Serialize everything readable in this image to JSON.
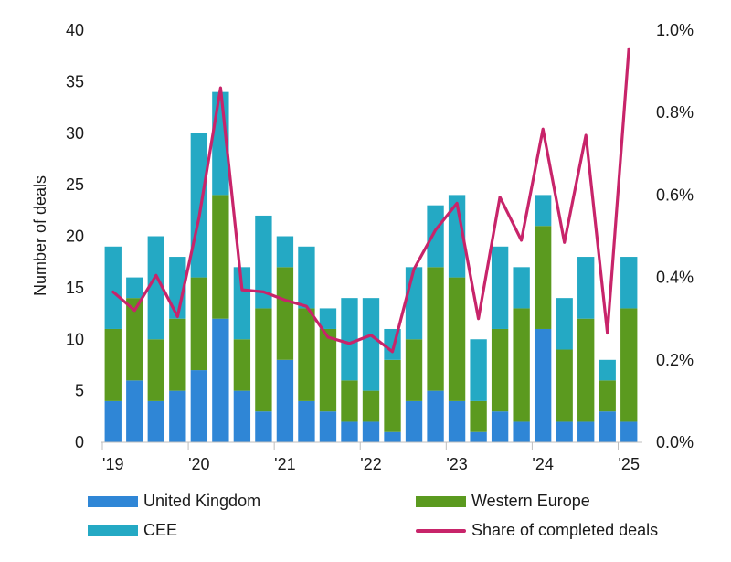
{
  "chart_data": {
    "type": "bar",
    "stacked": true,
    "ylabel": "Number of deals",
    "ylim": [
      0,
      40
    ],
    "y_ticks": [
      "0",
      "5",
      "10",
      "15",
      "20",
      "25",
      "30",
      "35",
      "40"
    ],
    "y2lim": [
      0,
      1.0
    ],
    "y2_ticks": [
      "0.0%",
      "0.2%",
      "0.4%",
      "0.6%",
      "0.8%",
      "1.0%"
    ],
    "x_tick_labels": [
      "'19",
      "'20",
      "'21",
      "'22",
      "'23",
      "'24",
      "'25"
    ],
    "grid": false,
    "legend_position": "bottom",
    "x": [
      "2019Q1",
      "2019Q2",
      "2019Q3",
      "2019Q4",
      "2020Q1",
      "2020Q2",
      "2020Q3",
      "2020Q4",
      "2021Q1",
      "2021Q2",
      "2021Q3",
      "2021Q4",
      "2022Q1",
      "2022Q2",
      "2022Q3",
      "2022Q4",
      "2023Q1",
      "2023Q2",
      "2023Q3",
      "2023Q4",
      "2024Q1",
      "2024Q2",
      "2024Q3",
      "2024Q4",
      "2025Q1"
    ],
    "series": [
      {
        "name": "United Kingdom",
        "type": "bar",
        "axis": "left",
        "color": "#2f86d6",
        "values": [
          4,
          6,
          4,
          5,
          7,
          12,
          5,
          3,
          8,
          4,
          3,
          2,
          2,
          1,
          4,
          5,
          4,
          1,
          3,
          2,
          11,
          2,
          2,
          3,
          2
        ]
      },
      {
        "name": "Western Europe",
        "type": "bar",
        "axis": "left",
        "color": "#5b9a1f",
        "values": [
          7,
          8,
          6,
          7,
          9,
          12,
          5,
          10,
          9,
          9,
          8,
          4,
          3,
          7,
          6,
          12,
          12,
          3,
          8,
          11,
          10,
          7,
          10,
          3,
          11
        ]
      },
      {
        "name": "CEE",
        "type": "bar",
        "axis": "left",
        "color": "#24a9c4",
        "values": [
          8,
          2,
          10,
          6,
          14,
          10,
          7,
          9,
          3,
          6,
          2,
          8,
          9,
          3,
          7,
          6,
          8,
          6,
          8,
          4,
          3,
          5,
          6,
          2,
          5
        ]
      },
      {
        "name": "Share of completed deals",
        "type": "line",
        "axis": "right",
        "color": "#c8246a",
        "values": [
          0.365,
          0.32,
          0.405,
          0.305,
          0.545,
          0.86,
          0.37,
          0.365,
          0.345,
          0.33,
          0.255,
          0.24,
          0.26,
          0.22,
          0.42,
          0.515,
          0.58,
          0.3,
          0.595,
          0.49,
          0.76,
          0.485,
          0.745,
          0.265,
          0.955
        ]
      }
    ]
  }
}
